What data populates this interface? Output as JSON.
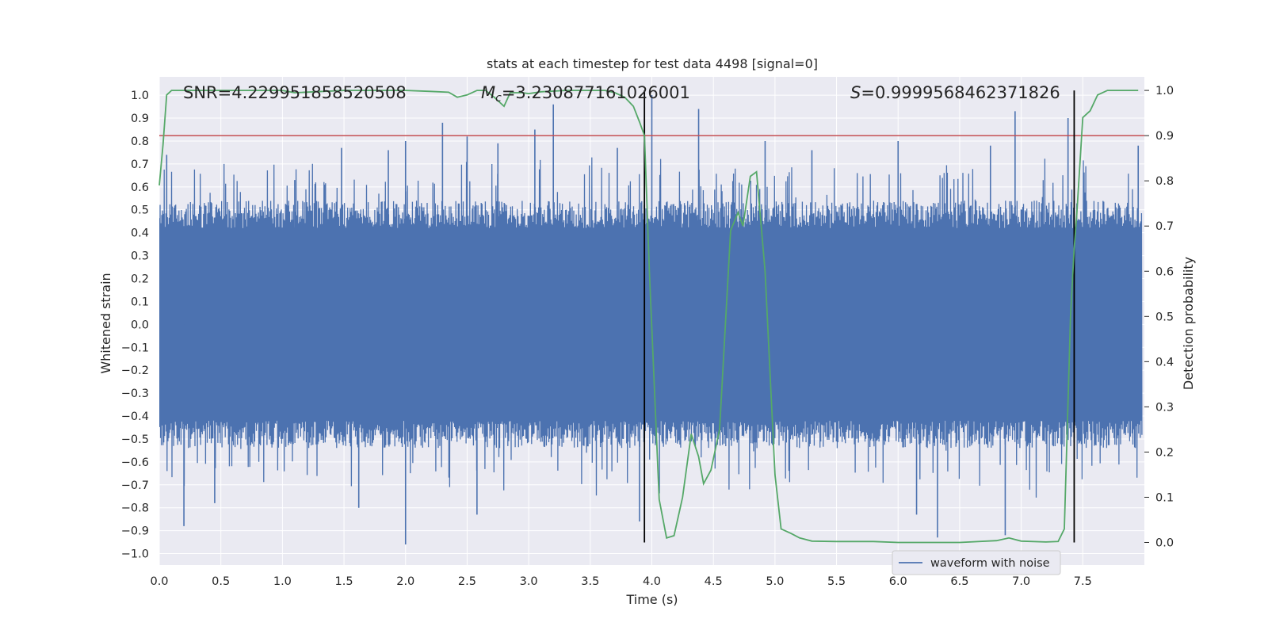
{
  "chart_data": {
    "type": "line",
    "title": "stats at each timestep for test data 4498 [signal=0]",
    "xlabel": "Time (s)",
    "ylabel": "Whitened strain",
    "ylabel_right": "Detection probability",
    "xlim": [
      0.0,
      8.0
    ],
    "ylim": [
      -1.05,
      1.08
    ],
    "ylim_right": [
      -0.05,
      1.03
    ],
    "x_ticks": [
      0.0,
      0.5,
      1.0,
      1.5,
      2.0,
      2.5,
      3.0,
      3.5,
      4.0,
      4.5,
      5.0,
      5.5,
      6.0,
      6.5,
      7.0,
      7.5
    ],
    "x_tick_labels": [
      "0.0",
      "0.5",
      "1.0",
      "1.5",
      "2.0",
      "2.5",
      "3.0",
      "3.5",
      "4.0",
      "4.5",
      "5.0",
      "5.5",
      "6.0",
      "6.5",
      "7.0",
      "7.5"
    ],
    "y_ticks": [
      -1.0,
      -0.9,
      -0.8,
      -0.7,
      -0.6,
      -0.5,
      -0.4,
      -0.3,
      -0.2,
      -0.1,
      0.0,
      0.1,
      0.2,
      0.3,
      0.4,
      0.5,
      0.6,
      0.7,
      0.8,
      0.9,
      1.0
    ],
    "y_tick_labels": [
      "−1.0",
      "−0.9",
      "−0.8",
      "−0.7",
      "−0.6",
      "−0.5",
      "−0.4",
      "−0.3",
      "−0.2",
      "−0.1",
      "0.0",
      "0.1",
      "0.2",
      "0.3",
      "0.4",
      "0.5",
      "0.6",
      "0.7",
      "0.8",
      "0.9",
      "1.0"
    ],
    "y_ticks_right": [
      0.0,
      0.1,
      0.2,
      0.3,
      0.4,
      0.5,
      0.6,
      0.7,
      0.8,
      0.9,
      1.0
    ],
    "y_tick_labels_right": [
      "0.0",
      "0.1",
      "0.2",
      "0.3",
      "0.4",
      "0.5",
      "0.6",
      "0.7",
      "0.8",
      "0.9",
      "1.0"
    ],
    "grid": true,
    "legend": {
      "placement": "lower-right",
      "entries": [
        "waveform with noise"
      ]
    },
    "annotations": {
      "snr": "SNR=4.229951858520508",
      "mc_symbol": "M",
      "mc_subscript": "c",
      "mc_value": "=3.230877161026001",
      "s_symbol": "S",
      "s_value": "=0.9999568462371826"
    },
    "threshold": {
      "value": 0.9,
      "axis": "right",
      "color": "#c44e52"
    },
    "vertical_lines": [
      3.94,
      7.43
    ],
    "colors": {
      "strain": "#4c72b0",
      "probability": "#55a868",
      "threshold": "#c44e52",
      "vlines": "#000000",
      "background": "#eaeaf2",
      "grid": "#ffffff"
    },
    "series": [
      {
        "name": "waveform with noise",
        "axis": "left",
        "description_values": "dense whitened noise mostly within ±0.4 with spikes up to about ±1.0",
        "spikes": [
          [
            0.06,
            0.74
          ],
          [
            0.2,
            -0.88
          ],
          [
            0.45,
            -0.78
          ],
          [
            1.1,
            0.63
          ],
          [
            1.48,
            0.77
          ],
          [
            1.62,
            -0.8
          ],
          [
            1.86,
            0.76
          ],
          [
            2.0,
            -0.96
          ],
          [
            2.0,
            0.8
          ],
          [
            2.3,
            0.88
          ],
          [
            2.5,
            0.82
          ],
          [
            2.58,
            -0.83
          ],
          [
            2.75,
            0.79
          ],
          [
            3.05,
            0.85
          ],
          [
            3.2,
            0.96
          ],
          [
            3.72,
            0.77
          ],
          [
            3.9,
            -0.86
          ],
          [
            4.0,
            1.0
          ],
          [
            4.38,
            0.94
          ],
          [
            4.92,
            0.8
          ],
          [
            5.3,
            0.76
          ],
          [
            6.0,
            0.8
          ],
          [
            6.15,
            -0.83
          ],
          [
            6.32,
            -0.93
          ],
          [
            6.75,
            0.78
          ],
          [
            6.87,
            -0.92
          ],
          [
            6.95,
            0.93
          ],
          [
            7.38,
            0.9
          ],
          [
            7.95,
            0.78
          ]
        ]
      },
      {
        "name": "",
        "axis": "right",
        "x": [
          0.0,
          0.03,
          0.06,
          0.1,
          0.2,
          0.5,
          1.0,
          1.1,
          1.5,
          1.8,
          2.0,
          2.2,
          2.35,
          2.42,
          2.5,
          2.58,
          2.65,
          2.72,
          2.8,
          2.85,
          2.95,
          3.0,
          3.1,
          3.3,
          3.5,
          3.62,
          3.7,
          3.78,
          3.85,
          3.9,
          3.94,
          3.98,
          4.06,
          4.12,
          4.18,
          4.25,
          4.32,
          4.38,
          4.42,
          4.48,
          4.55,
          4.64,
          4.7,
          4.74,
          4.8,
          4.85,
          4.92,
          5.0,
          5.05,
          5.13,
          5.2,
          5.3,
          5.5,
          5.8,
          6.0,
          6.5,
          6.8,
          6.9,
          7.0,
          7.2,
          7.3,
          7.35,
          7.4,
          7.43,
          7.45,
          7.5,
          7.56,
          7.62,
          7.7,
          7.8,
          7.95
        ],
        "values": [
          0.79,
          0.88,
          0.99,
          1.0,
          1.0,
          1.0,
          1.0,
          0.995,
          1.0,
          1.0,
          1.0,
          0.998,
          0.996,
          0.985,
          0.99,
          1.0,
          1.0,
          0.985,
          0.965,
          0.995,
          0.995,
          0.993,
          0.997,
          1.0,
          1.0,
          1.0,
          0.995,
          0.985,
          0.965,
          0.93,
          0.9,
          0.6,
          0.095,
          0.01,
          0.015,
          0.1,
          0.24,
          0.19,
          0.13,
          0.16,
          0.25,
          0.69,
          0.73,
          0.7,
          0.81,
          0.82,
          0.6,
          0.15,
          0.03,
          0.02,
          0.01,
          0.003,
          0.002,
          0.002,
          0.0,
          0.0,
          0.004,
          0.01,
          0.003,
          0.001,
          0.002,
          0.03,
          0.5,
          0.65,
          0.72,
          0.94,
          0.955,
          0.99,
          1.0,
          1.0,
          1.0
        ]
      }
    ]
  }
}
